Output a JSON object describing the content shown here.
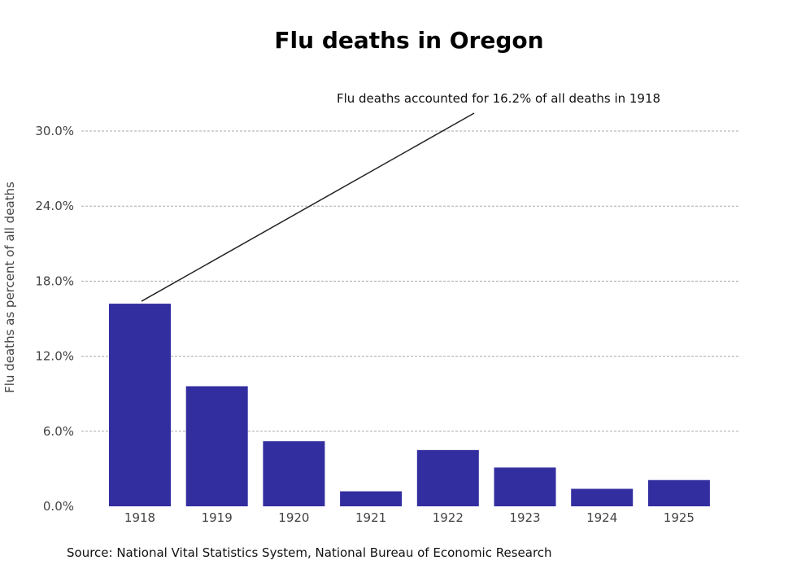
{
  "chart_data": {
    "type": "bar",
    "title": "Flu deaths in Oregon",
    "xlabel": "",
    "ylabel": "Flu deaths as percent of all deaths",
    "categories": [
      "1918",
      "1919",
      "1920",
      "1921",
      "1922",
      "1923",
      "1924",
      "1925"
    ],
    "values": [
      16.2,
      9.6,
      5.2,
      1.2,
      4.5,
      3.1,
      1.4,
      2.1
    ],
    "ylim": [
      0,
      30
    ],
    "yticks": [
      0,
      6,
      12,
      18,
      24,
      30
    ],
    "ytick_labels": [
      "0.0%",
      "6.0%",
      "12.0%",
      "18.0%",
      "24.0%",
      "30.0%"
    ],
    "grid": "horizontal dashed",
    "bar_color": "#332ea0",
    "annotation": {
      "text": "Flu deaths accounted for 16.2% of all deaths in 1918",
      "category": "1918",
      "value": 16.2
    },
    "source": "Source: National Vital Statistics System, National Bureau of Economic Research"
  }
}
